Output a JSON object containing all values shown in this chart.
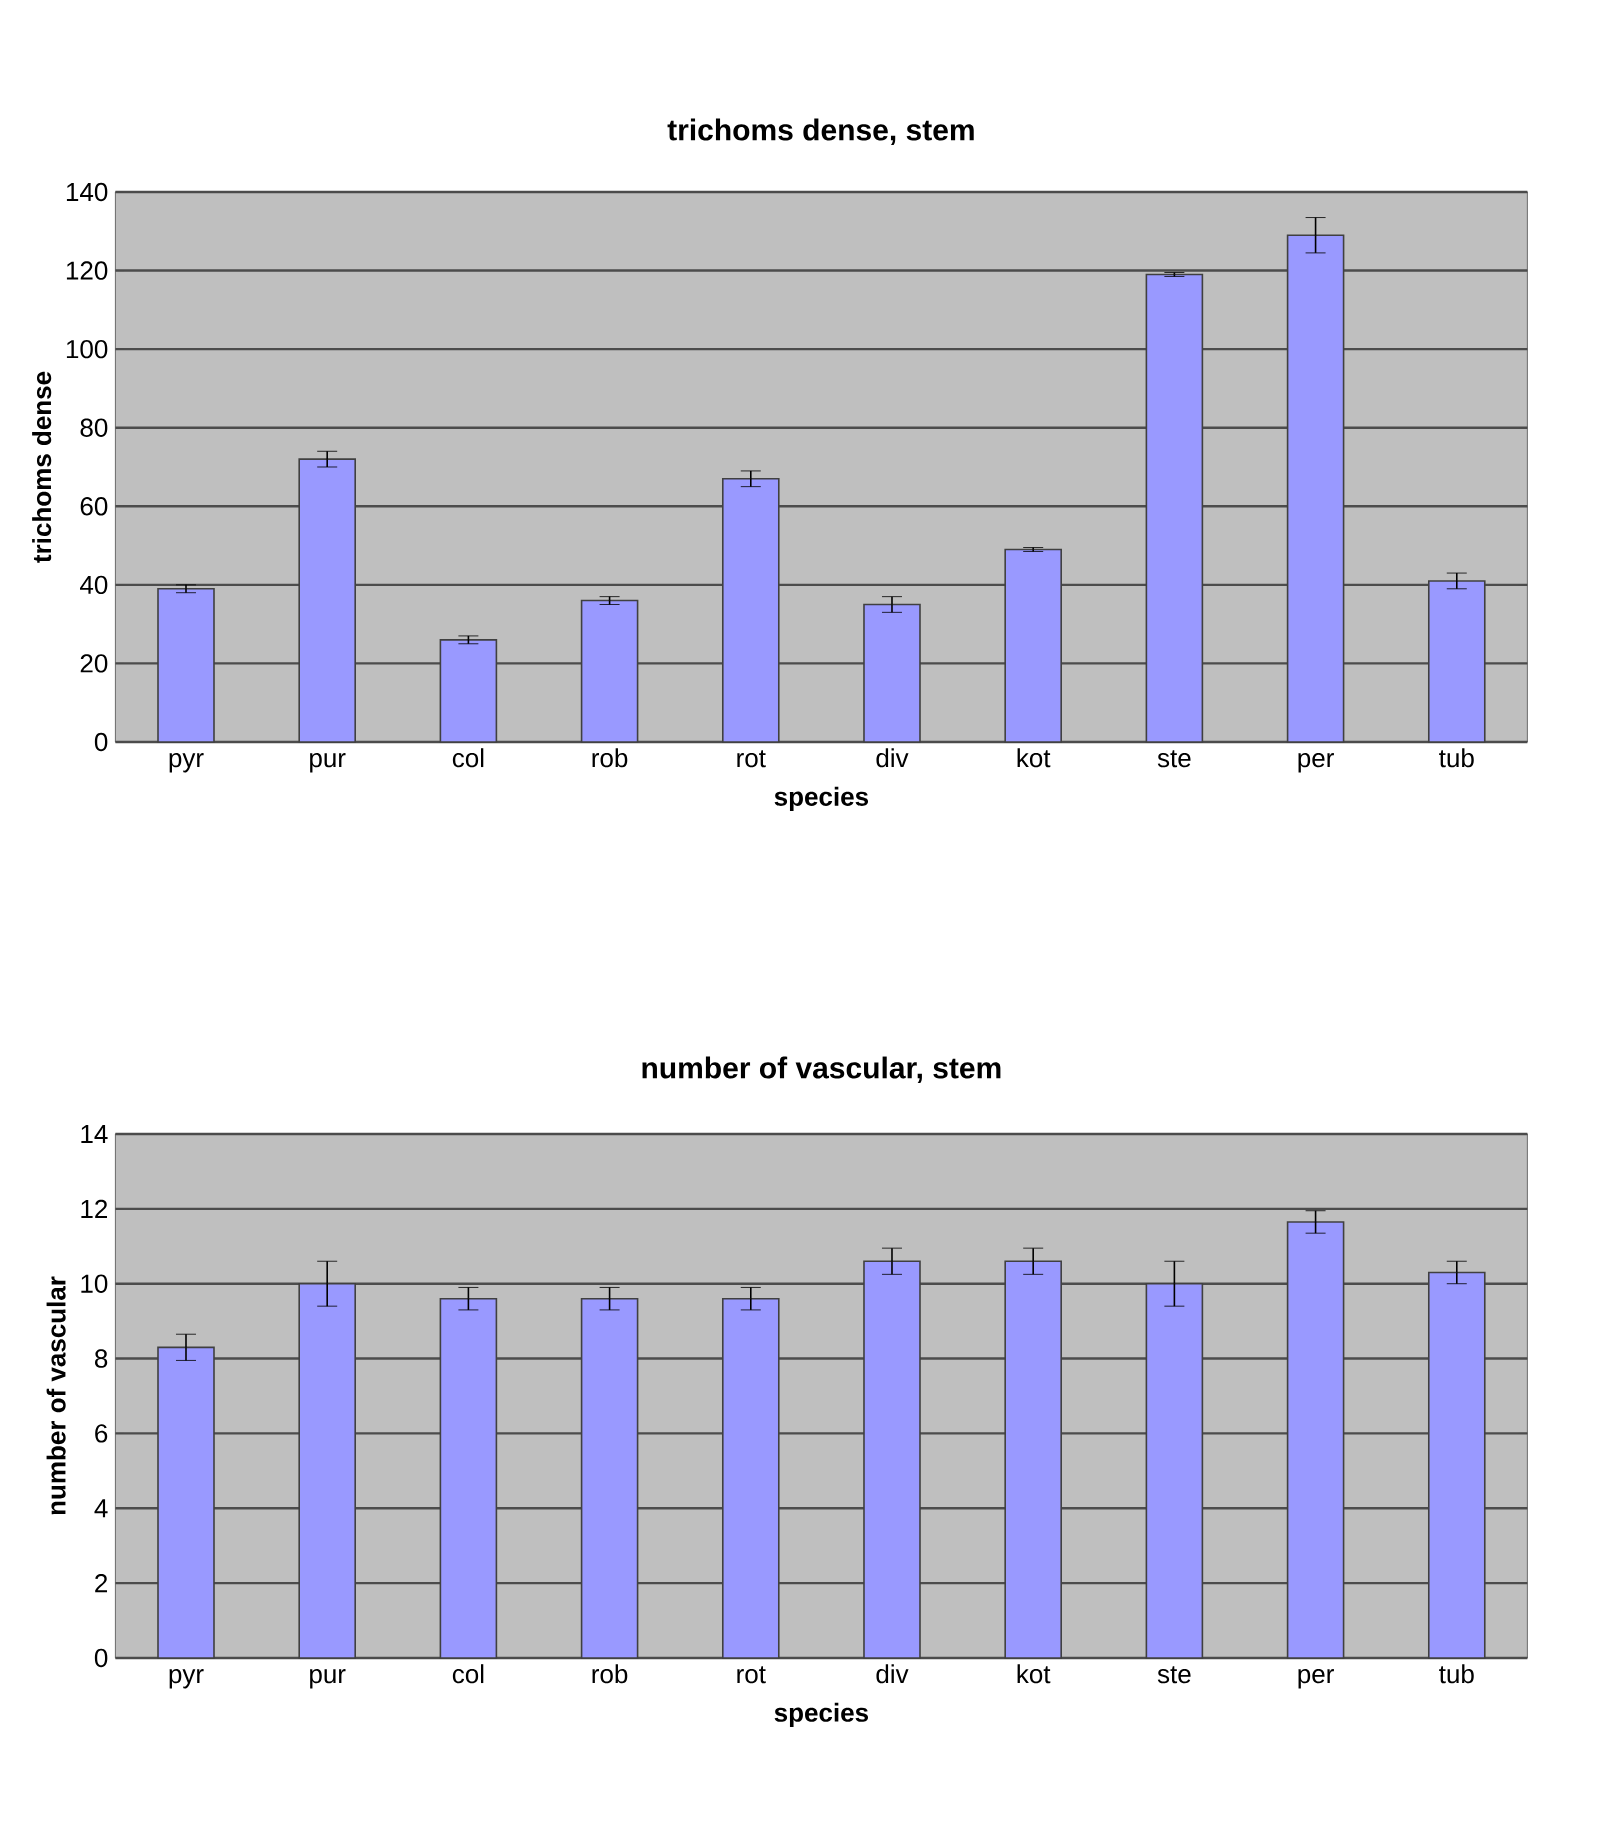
{
  "chart_data": [
    {
      "type": "bar",
      "title": "trichoms dense, stem",
      "xlabel": "species",
      "ylabel": "trichoms dense",
      "categories": [
        "pyr",
        "pur",
        "col",
        "rob",
        "rot",
        "div",
        "kot",
        "ste",
        "per",
        "tub"
      ],
      "color": "#9999ff",
      "values": [
        39,
        72,
        26,
        36,
        67,
        35,
        49,
        119,
        129,
        41
      ],
      "errors": [
        1,
        2,
        1,
        1,
        2,
        2,
        0.5,
        0.5,
        4.5,
        2
      ],
      "ylim": [
        0,
        140
      ],
      "yticks": [
        0,
        20,
        40,
        60,
        80,
        100,
        120,
        140
      ],
      "grid": "y"
    },
    {
      "type": "bar",
      "title": "number of vascular, stem",
      "xlabel": "species",
      "ylabel": "number of vascular",
      "categories": [
        "pyr",
        "pur",
        "col",
        "rob",
        "rot",
        "div",
        "kot",
        "ste",
        "per",
        "tub"
      ],
      "color": "#9999ff",
      "values": [
        8.3,
        10.0,
        9.6,
        9.6,
        9.6,
        10.6,
        10.6,
        10.0,
        11.65,
        10.3
      ],
      "errors": [
        0.35,
        0.6,
        0.3,
        0.3,
        0.3,
        0.35,
        0.35,
        0.6,
        0.3,
        0.3
      ],
      "ylim": [
        0,
        14
      ],
      "yticks": [
        0,
        2,
        4,
        6,
        8,
        10,
        12,
        14
      ],
      "grid": "y"
    }
  ]
}
